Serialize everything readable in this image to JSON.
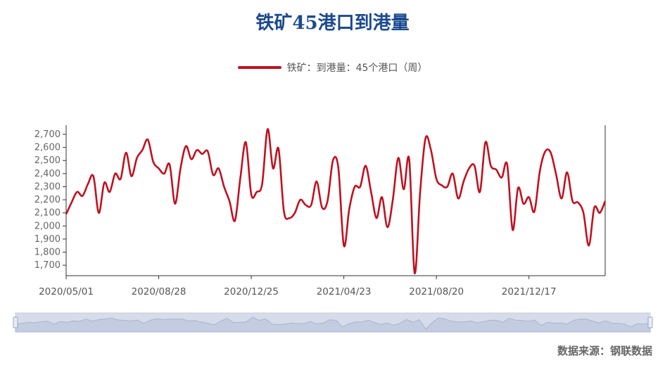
{
  "colors": {
    "title": "#1b4a8f",
    "series": "#c0111f",
    "axis": "#333333",
    "zoom_fill": "#d6dcea",
    "zoom_line": "#aab6cc"
  },
  "source_text": "数据来源：钢联数据",
  "chart_data": {
    "type": "line",
    "title": "铁矿45港口到港量",
    "series": [
      {
        "name": "铁矿：到港量：45个港口（周）",
        "values": [
          2090,
          2180,
          2260,
          2230,
          2320,
          2380,
          2100,
          2330,
          2260,
          2400,
          2360,
          2560,
          2380,
          2520,
          2580,
          2660,
          2490,
          2440,
          2400,
          2470,
          2170,
          2440,
          2610,
          2510,
          2580,
          2550,
          2570,
          2390,
          2440,
          2300,
          2190,
          2040,
          2370,
          2640,
          2240,
          2260,
          2320,
          2740,
          2440,
          2590,
          2110,
          2060,
          2100,
          2200,
          2160,
          2160,
          2340,
          2140,
          2190,
          2500,
          2440,
          1850,
          2130,
          2300,
          2300,
          2460,
          2260,
          2060,
          2220,
          1990,
          2200,
          2520,
          2280,
          2510,
          1640,
          2250,
          2670,
          2580,
          2360,
          2310,
          2300,
          2400,
          2210,
          2340,
          2440,
          2460,
          2260,
          2640,
          2460,
          2430,
          2370,
          2470,
          1970,
          2290,
          2170,
          2220,
          2110,
          2420,
          2570,
          2560,
          2390,
          2210,
          2410,
          2190,
          2180,
          2100,
          1850,
          2140,
          2100,
          2190
        ]
      }
    ],
    "x_tick_labels": [
      "2020/05/01",
      "2020/08/28",
      "2020/12/25",
      "2021/04/23",
      "2021/08/20",
      "2021/12/17"
    ],
    "y_ticks": [
      1700,
      1800,
      1900,
      2000,
      2100,
      2200,
      2300,
      2400,
      2500,
      2600,
      2700
    ],
    "y_tick_labels": [
      "1,700",
      "1,800",
      "1,900",
      "2,000",
      "2,100",
      "2,200",
      "2,300",
      "2,400",
      "2,500",
      "2,600",
      "2,700"
    ],
    "ylim": [
      1620,
      2770
    ],
    "grid": false,
    "legend_position": "top-center"
  }
}
